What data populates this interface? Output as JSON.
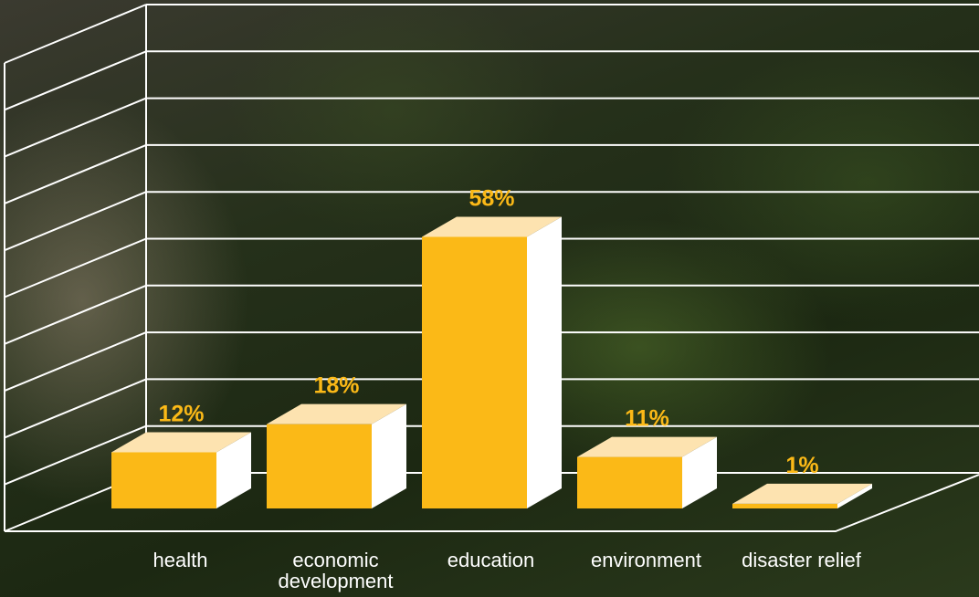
{
  "chart_data": {
    "type": "bar3d",
    "categories": [
      "health",
      "economic development",
      "education",
      "environment",
      "disaster relief"
    ],
    "values": [
      12,
      18,
      58,
      11,
      1
    ],
    "value_labels": [
      "12%",
      "18%",
      "58%",
      "11%",
      "1%"
    ],
    "color": "#fbb917",
    "ylim": [
      0,
      100
    ],
    "yticks": [
      0,
      10,
      20,
      30,
      40,
      50,
      60,
      70,
      80,
      90,
      100
    ],
    "grid": true
  }
}
